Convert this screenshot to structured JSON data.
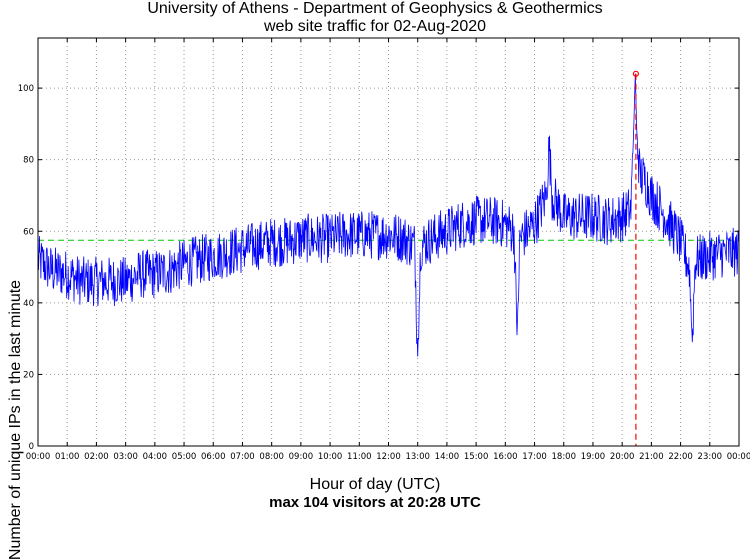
{
  "chart_data": {
    "type": "line",
    "title": "University of Athens - Department of Geophysics & Geothermics",
    "subtitle": "web site traffic for 02-Aug-2020",
    "xlabel": "Hour of day (UTC)",
    "ylabel": "Number of unique IPs in the last minute",
    "summary": "max 104 visitors at 20:28 UTC",
    "xlim": [
      0,
      24
    ],
    "ylim": [
      0,
      114
    ],
    "x_tick_labels": [
      "00:00",
      "01:00",
      "02:00",
      "03:00",
      "04:00",
      "05:00",
      "06:00",
      "07:00",
      "08:00",
      "09:00",
      "10:00",
      "11:00",
      "12:00",
      "13:00",
      "14:00",
      "15:00",
      "16:00",
      "17:00",
      "18:00",
      "19:00",
      "20:00",
      "21:00",
      "22:00",
      "23:00",
      "00:00"
    ],
    "y_ticks": [
      0,
      20,
      40,
      60,
      80,
      100
    ],
    "grid": true,
    "mean_value": 57.5,
    "max_point": {
      "x": 20.47,
      "y": 104
    },
    "series": [
      {
        "x": [
          0,
          0.5,
          1,
          1.5,
          2,
          2.5,
          3,
          3.5,
          4,
          4.5,
          5,
          5.5,
          6,
          6.5,
          7,
          7.5,
          8,
          8.5,
          9,
          9.5,
          10,
          10.5,
          11,
          11.5,
          12,
          12.5,
          12.9,
          13.0,
          13.1,
          13.5,
          14,
          14.5,
          15,
          15.5,
          16,
          16.3,
          16.4,
          16.5,
          17,
          17.4,
          17.5,
          17.6,
          18,
          18.5,
          19,
          19.5,
          20,
          20.3,
          20.4,
          20.45,
          20.5,
          20.6,
          20.8,
          21,
          21.5,
          22,
          22.3,
          22.4,
          22.5,
          23,
          23.5,
          24
        ],
        "y": [
          52,
          49,
          48,
          46,
          46,
          46,
          46,
          48,
          48,
          49,
          51,
          52,
          53,
          54,
          55,
          56,
          57,
          57,
          58,
          58,
          58,
          59,
          59,
          59,
          59,
          58,
          56,
          25,
          56,
          58,
          60,
          62,
          63,
          63,
          62,
          60,
          31,
          58,
          62,
          70,
          84,
          70,
          64,
          64,
          64,
          63,
          64,
          66,
          90,
          104,
          88,
          76,
          74,
          70,
          64,
          57,
          50,
          29,
          52,
          53,
          54,
          54
        ],
        "color": "#0000ff"
      }
    ],
    "colors": {
      "series": "#0000ff",
      "mean": "#00cc00",
      "marker": "#ff0000",
      "grid": "#999999"
    }
  }
}
